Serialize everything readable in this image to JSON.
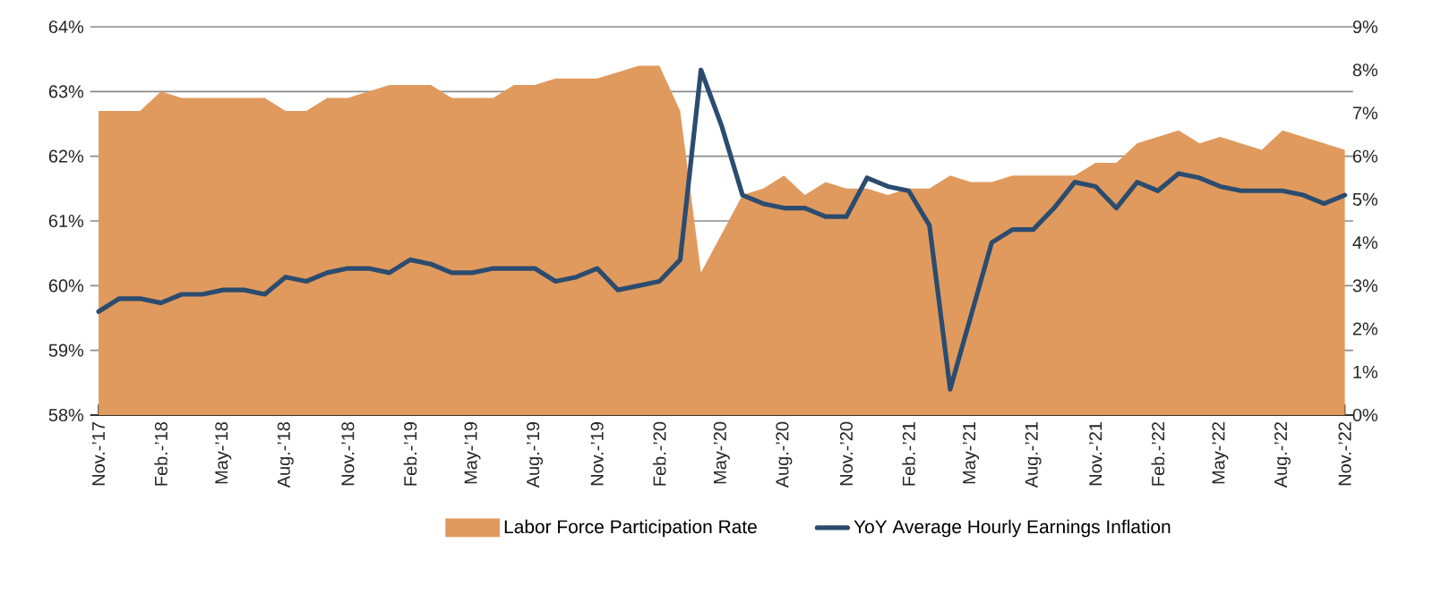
{
  "chart_data": {
    "type": "area",
    "categories": [
      "Nov.-’17",
      null,
      null,
      "Feb.-’18",
      null,
      null,
      "May-’18",
      null,
      null,
      "Aug.-’18",
      null,
      null,
      "Nov.-’18",
      null,
      null,
      "Feb.-’19",
      null,
      null,
      "May-’19",
      null,
      null,
      "Aug.-’19",
      null,
      null,
      "Nov.-’19",
      null,
      null,
      "Feb.-’20",
      null,
      null,
      "May-’20",
      null,
      null,
      "Aug.-’20",
      null,
      null,
      "Nov.-’20",
      null,
      null,
      "Feb.-’21",
      null,
      null,
      "May-’21",
      null,
      null,
      "Aug.-’21",
      null,
      null,
      "Nov.-’21",
      null,
      null,
      "Feb.-’22",
      null,
      null,
      "May-’22",
      null,
      null,
      "Aug.-’22",
      null,
      null,
      "Nov.-’22"
    ],
    "series": [
      {
        "name": "Labor Force Participation Rate",
        "color": "#e09a5e",
        "values": [
          62.7,
          62.7,
          62.7,
          63.0,
          62.9,
          62.9,
          62.9,
          62.9,
          62.9,
          62.7,
          62.7,
          62.9,
          62.9,
          63.0,
          63.1,
          63.1,
          63.1,
          62.9,
          62.9,
          62.9,
          63.1,
          63.1,
          63.2,
          63.2,
          63.2,
          63.3,
          63.4,
          63.4,
          62.7,
          60.2,
          60.8,
          61.4,
          61.5,
          61.7,
          61.4,
          61.6,
          61.5,
          61.5,
          61.4,
          61.5,
          61.5,
          61.7,
          61.6,
          61.6,
          61.7,
          61.7,
          61.7,
          61.7,
          61.9,
          61.9,
          62.2,
          62.3,
          62.4,
          62.2,
          62.3,
          62.2,
          62.1,
          62.4,
          62.3,
          62.2,
          62.1
        ]
      },
      {
        "name": "YoY Average Hourly Earnings Inflation",
        "type": "line",
        "axis": "y2",
        "color": "#2b4c6f",
        "values": [
          2.4,
          2.7,
          2.7,
          2.6,
          2.8,
          2.8,
          2.9,
          2.9,
          2.8,
          3.2,
          3.1,
          3.3,
          3.4,
          3.4,
          3.3,
          3.6,
          3.5,
          3.3,
          3.3,
          3.4,
          3.4,
          3.4,
          3.1,
          3.2,
          3.4,
          2.9,
          3.0,
          3.1,
          3.6,
          8.0,
          6.7,
          5.1,
          4.9,
          4.8,
          4.8,
          4.6,
          4.6,
          5.5,
          5.3,
          5.2,
          4.4,
          0.6,
          2.3,
          4.0,
          4.3,
          4.3,
          4.8,
          5.4,
          5.3,
          4.8,
          5.4,
          5.2,
          5.6,
          5.5,
          5.3,
          5.2,
          5.2,
          5.2,
          5.1,
          4.9,
          5.1
        ]
      }
    ],
    "ylim": [
      58,
      64
    ],
    "yticks": [
      {
        "value": 58,
        "label": "58%"
      },
      {
        "value": 59,
        "label": "59%"
      },
      {
        "value": 60,
        "label": "60%"
      },
      {
        "value": 61,
        "label": "61%"
      },
      {
        "value": 62,
        "label": "62%"
      },
      {
        "value": 63,
        "label": "63%"
      },
      {
        "value": 64,
        "label": "64%"
      }
    ],
    "y2lim": [
      0,
      9
    ],
    "y2ticks": [
      {
        "value": 0,
        "label": "0%"
      },
      {
        "value": 1,
        "label": "1%"
      },
      {
        "value": 2,
        "label": "2%"
      },
      {
        "value": 3,
        "label": "3%"
      },
      {
        "value": 4,
        "label": "4%"
      },
      {
        "value": 5,
        "label": "5%"
      },
      {
        "value": 6,
        "label": "6%"
      },
      {
        "value": 7,
        "label": "7%"
      },
      {
        "value": 8,
        "label": "8%"
      },
      {
        "value": 9,
        "label": "9%"
      }
    ],
    "grid": "y",
    "legend": "bottom"
  }
}
